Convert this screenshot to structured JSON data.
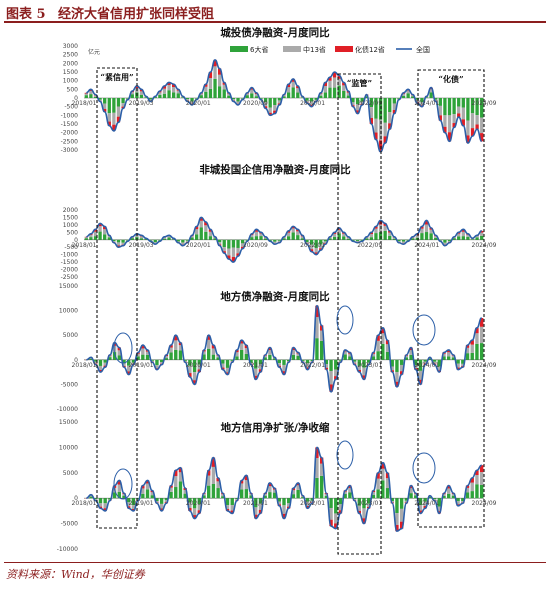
{
  "figure": {
    "label": "图表 5",
    "title": "经济大省信用扩张同样受阻",
    "source": "资料来源：Wind，华创证券"
  },
  "colors": {
    "six_provinces": "#2fa33a",
    "middle_13": "#aaaaaa",
    "debt_12": "#e01f26",
    "nationwide": "#2c5fa8",
    "accent": "#8b1e1e"
  },
  "chart_data": [
    {
      "type": "bar",
      "title": "城投债净融资-月度同比",
      "unit": "亿元",
      "legend": [
        "6大省",
        "中13省",
        "化债12省",
        "全国"
      ],
      "y_ticks": [
        3000,
        2500,
        2000,
        1500,
        1000,
        500,
        0,
        -500,
        -1000,
        -1500,
        -2000,
        -2500,
        -3000
      ],
      "ylim": [
        -3000,
        3000
      ],
      "x_ticks": [
        "2018/01",
        "2019/03",
        "2020/01",
        "2020/09",
        "2022/01",
        "2022/09",
        "2024/01",
        "2024/09"
      ],
      "annotations": [
        "紧信用",
        "监管",
        "化债"
      ],
      "series": [
        {
          "name": "全国",
          "values": [
            300,
            500,
            200,
            -200,
            -800,
            -1600,
            -1900,
            -1400,
            -600,
            -100,
            400,
            700,
            500,
            100,
            -200,
            100,
            400,
            700,
            900,
            800,
            500,
            100,
            -200,
            -400,
            -100,
            300,
            800,
            1500,
            2200,
            1700,
            900,
            300,
            -200,
            -400,
            -100,
            300,
            600,
            300,
            -100,
            -600,
            -1000,
            -900,
            -400,
            200,
            800,
            1100,
            700,
            100,
            -300,
            -500,
            -200,
            300,
            900,
            1200,
            1500,
            1300,
            900,
            400,
            -500,
            -900,
            -400,
            200,
            -1500,
            -2400,
            -3100,
            -2600,
            -1800,
            -900,
            -100,
            300,
            500,
            200,
            -300,
            -500,
            100,
            600,
            -200,
            -1300,
            -2000,
            -2500,
            -1700,
            -1100,
            -1600,
            -2600,
            -2200,
            -1800,
            -2500
          ]
        }
      ]
    },
    {
      "type": "bar",
      "title": "非城投国企信用净融资-月度同比",
      "unit": "亿元",
      "y_ticks": [
        2000,
        1500,
        1000,
        500,
        0,
        -500,
        -1000,
        -1500,
        -2000,
        -2500
      ],
      "ylim": [
        -2500,
        2000
      ],
      "x_ticks": [
        "2018/01",
        "2019/03",
        "2020/01",
        "2020/09",
        "2022/01",
        "2022/09",
        "2024/01",
        "2024/09"
      ],
      "series": [
        {
          "name": "全国",
          "values": [
            200,
            400,
            700,
            1100,
            900,
            300,
            -200,
            -500,
            -400,
            -100,
            200,
            400,
            300,
            100,
            -100,
            -300,
            -100,
            200,
            300,
            100,
            -200,
            -400,
            -200,
            300,
            900,
            1500,
            1200,
            700,
            200,
            -400,
            -900,
            -1300,
            -1500,
            -1100,
            -600,
            -100,
            400,
            700,
            500,
            200,
            -100,
            -300,
            -200,
            200,
            600,
            900,
            700,
            300,
            -300,
            -800,
            -1000,
            -700,
            -300,
            200,
            500,
            800,
            500,
            200,
            -100,
            -200,
            -100,
            200,
            500,
            900,
            1300,
            1100,
            600,
            200,
            -200,
            -300,
            -100,
            200,
            400,
            900,
            1300,
            800,
            300,
            -100,
            -400,
            -200,
            200,
            500,
            700,
            400,
            100,
            300,
            600
          ]
        }
      ]
    },
    {
      "type": "bar",
      "title": "地方债净融资-月度同比",
      "unit": "亿元",
      "y_ticks": [
        15000,
        10000,
        5000,
        0,
        -5000,
        -10000
      ],
      "ylim": [
        -10000,
        15000
      ],
      "x_ticks": [
        "2018/01",
        "2019/01",
        "2020/01",
        "2021/01",
        "2022/01",
        "2023/01",
        "2024/01",
        "2024/09"
      ],
      "series": [
        {
          "name": "全国",
          "values": [
            0,
            500,
            -1000,
            -2500,
            -1500,
            1000,
            3500,
            2500,
            -1500,
            -3000,
            -1000,
            1500,
            3000,
            2000,
            -500,
            -2000,
            -1000,
            1000,
            3000,
            5000,
            3500,
            -500,
            -3500,
            -5000,
            -2500,
            2000,
            5000,
            3000,
            1000,
            -2000,
            -3000,
            -500,
            2000,
            4000,
            3000,
            -1000,
            -4000,
            -2500,
            1000,
            2500,
            500,
            -1500,
            -3000,
            -500,
            2500,
            1500,
            -500,
            -2000,
            -500,
            11000,
            7000,
            -2000,
            -6500,
            -4000,
            -500,
            2000,
            1500,
            -1000,
            -2500,
            -4000,
            -1000,
            1500,
            5000,
            6500,
            4000,
            -2500,
            -5500,
            -3000,
            1000,
            2500,
            -2000,
            -5000,
            -1000,
            500,
            -1000,
            -2500,
            1500,
            2000,
            1000,
            -2000,
            -1500,
            3000,
            4000,
            6500,
            8500
          ]
        }
      ]
    },
    {
      "type": "bar",
      "title": "地方信用净扩张/净收缩",
      "unit": "亿元",
      "y_ticks": [
        15000,
        10000,
        5000,
        0,
        -5000,
        -10000
      ],
      "ylim": [
        -10000,
        15000
      ],
      "x_ticks": [
        "2018/01",
        "2019/01",
        "2020/01",
        "2021/01",
        "2022/01",
        "2023/01",
        "2024/01",
        "2024/09"
      ],
      "series": [
        {
          "name": "全国",
          "values": [
            0,
            700,
            -500,
            -2000,
            -2500,
            -500,
            2500,
            3500,
            1000,
            -2000,
            -2500,
            -500,
            2500,
            3500,
            1500,
            -1000,
            -2500,
            -1000,
            2500,
            5500,
            6000,
            2000,
            -2500,
            -4000,
            -3000,
            1000,
            5500,
            8000,
            4000,
            1000,
            -2500,
            -3000,
            -500,
            3500,
            4500,
            1000,
            -4000,
            -3000,
            1000,
            3000,
            2000,
            -1500,
            -4000,
            -2000,
            2000,
            3000,
            500,
            -2000,
            -1000,
            10000,
            8000,
            1000,
            -5500,
            -6000,
            -3000,
            1500,
            2500,
            -500,
            -3000,
            -5000,
            -2000,
            1500,
            5000,
            7000,
            5000,
            -1000,
            -6500,
            -6000,
            -1000,
            2500,
            1000,
            -3000,
            -2000,
            500,
            -500,
            -3000,
            1000,
            2500,
            1000,
            -1500,
            -1000,
            2500,
            4000,
            5500,
            6500
          ]
        }
      ]
    }
  ]
}
